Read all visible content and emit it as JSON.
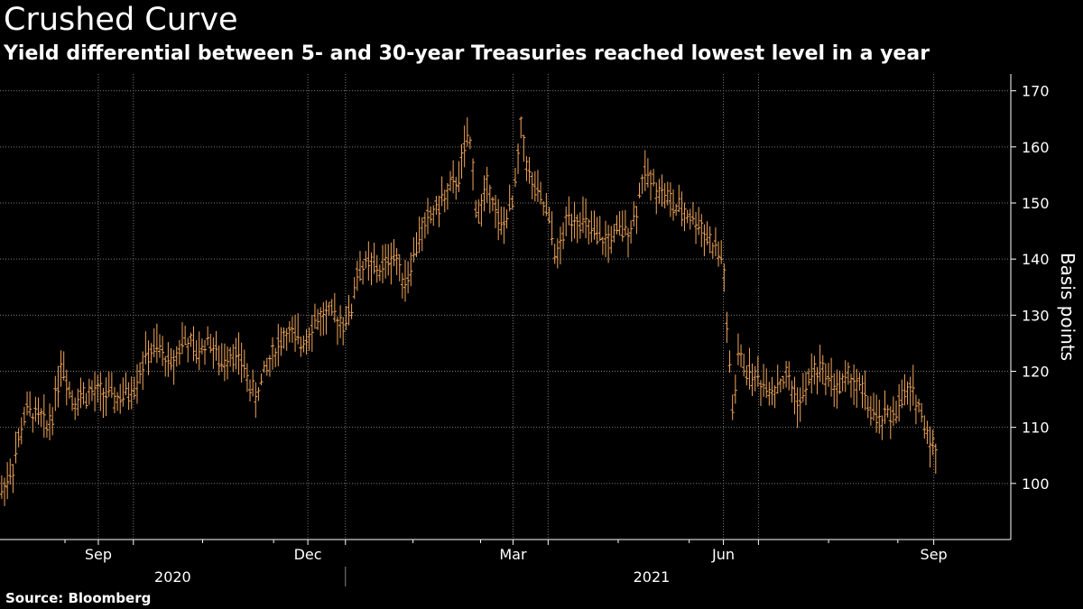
{
  "header": {
    "title": "Crushed Curve",
    "subtitle": "Yield differential between 5- and 30-year Treasuries reached lowest level in a year"
  },
  "footer": {
    "source": "Source: Bloomberg"
  },
  "colors": {
    "background": "#000000",
    "series": "#f2a65a",
    "grid": "#7a7a7a",
    "text": "#ffffff"
  },
  "chart_data": {
    "type": "ohlc",
    "title": "Crushed Curve",
    "subtitle": "Yield differential between 5- and 30-year Treasuries reached lowest level in a year",
    "ylabel": "Basis points",
    "ylim": [
      90,
      173
    ],
    "yticks": [
      100,
      110,
      120,
      130,
      140,
      150,
      160,
      170
    ],
    "x_domain": [
      0,
      1180
    ],
    "month_ticks": [
      {
        "label": "Sep",
        "x": 115,
        "grid": true
      },
      {
        "label": "",
        "x": 156,
        "grid": true
      },
      {
        "label": "Dec",
        "x": 360,
        "grid": true
      },
      {
        "label": "",
        "x": 404,
        "grid": true
      },
      {
        "label": "Mar",
        "x": 600,
        "grid": true
      },
      {
        "label": "",
        "x": 641,
        "grid": true
      },
      {
        "label": "Jun",
        "x": 846,
        "grid": true
      },
      {
        "label": "",
        "x": 887,
        "grid": true
      },
      {
        "label": "Sep",
        "x": 1092,
        "grid": true
      }
    ],
    "minor_ticks": [
      76,
      237,
      320,
      483,
      562,
      723,
      806,
      969,
      1050
    ],
    "year_labels": [
      {
        "label": "2020",
        "x": 202
      },
      {
        "label": "2021",
        "x": 762
      }
    ],
    "year_divider_x": 404,
    "anchors": [
      [
        0,
        98
      ],
      [
        15,
        103
      ],
      [
        30,
        113
      ],
      [
        45,
        112
      ],
      [
        55,
        110
      ],
      [
        62,
        113
      ],
      [
        72,
        122
      ],
      [
        85,
        115
      ],
      [
        100,
        116
      ],
      [
        120,
        116
      ],
      [
        140,
        115
      ],
      [
        155,
        117
      ],
      [
        172,
        123
      ],
      [
        185,
        124
      ],
      [
        200,
        121
      ],
      [
        215,
        126
      ],
      [
        230,
        123
      ],
      [
        245,
        126
      ],
      [
        258,
        121
      ],
      [
        270,
        124
      ],
      [
        285,
        121
      ],
      [
        298,
        115
      ],
      [
        310,
        120
      ],
      [
        322,
        124
      ],
      [
        335,
        127
      ],
      [
        352,
        125
      ],
      [
        368,
        129
      ],
      [
        385,
        130
      ],
      [
        400,
        129
      ],
      [
        410,
        130
      ],
      [
        418,
        138
      ],
      [
        430,
        139
      ],
      [
        445,
        138
      ],
      [
        460,
        141
      ],
      [
        475,
        136
      ],
      [
        490,
        144
      ],
      [
        505,
        148
      ],
      [
        520,
        151
      ],
      [
        535,
        154
      ],
      [
        548,
        162
      ],
      [
        552,
        158
      ],
      [
        558,
        147
      ],
      [
        572,
        154
      ],
      [
        585,
        145
      ],
      [
        600,
        150
      ],
      [
        610,
        164
      ],
      [
        618,
        155
      ],
      [
        630,
        151
      ],
      [
        640,
        148
      ],
      [
        652,
        140
      ],
      [
        665,
        148
      ],
      [
        680,
        147
      ],
      [
        695,
        144
      ],
      [
        710,
        143
      ],
      [
        725,
        145
      ],
      [
        740,
        146
      ],
      [
        752,
        155
      ],
      [
        762,
        154
      ],
      [
        775,
        152
      ],
      [
        790,
        149
      ],
      [
        805,
        148
      ],
      [
        820,
        146
      ],
      [
        835,
        142
      ],
      [
        846,
        140
      ],
      [
        850,
        127
      ],
      [
        855,
        118
      ],
      [
        858,
        110
      ],
      [
        862,
        123
      ],
      [
        875,
        120
      ],
      [
        890,
        118
      ],
      [
        905,
        117
      ],
      [
        920,
        119
      ],
      [
        935,
        114
      ],
      [
        950,
        120
      ],
      [
        965,
        120
      ],
      [
        980,
        117
      ],
      [
        995,
        119
      ],
      [
        1010,
        116
      ],
      [
        1025,
        111
      ],
      [
        1040,
        112
      ],
      [
        1052,
        114
      ],
      [
        1060,
        116
      ],
      [
        1070,
        116
      ],
      [
        1080,
        111
      ],
      [
        1088,
        108
      ],
      [
        1095,
        105
      ]
    ]
  }
}
